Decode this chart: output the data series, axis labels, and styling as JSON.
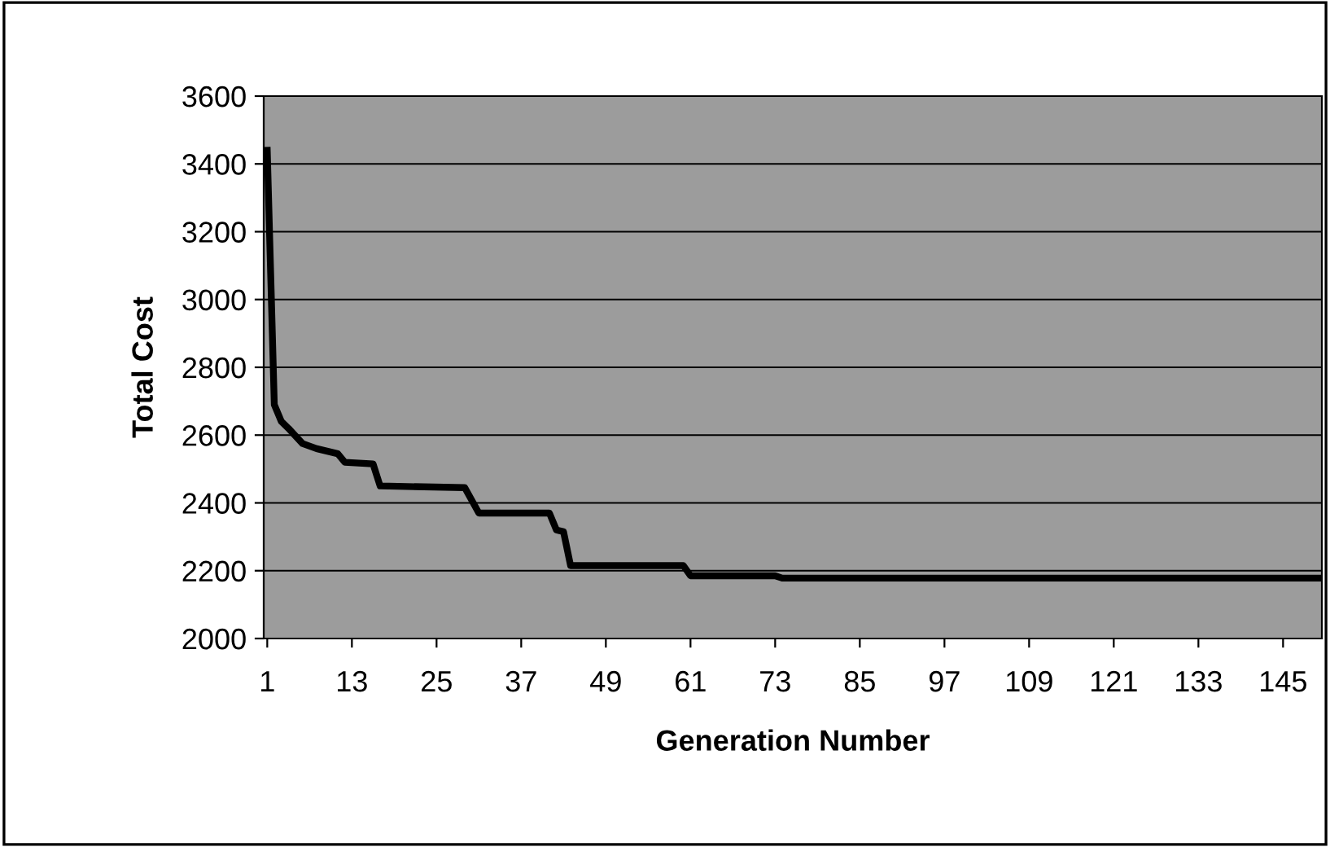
{
  "chart_data": {
    "type": "line",
    "xlabel": "Generation Number",
    "ylabel": "Total Cost",
    "x": [
      1,
      2,
      3,
      4,
      6,
      8,
      11,
      12,
      16,
      17,
      29,
      31,
      41,
      42,
      43,
      44,
      60,
      61,
      73,
      74,
      150
    ],
    "series": [
      {
        "color": "#000000",
        "values": [
          3440,
          2690,
          2640,
          2620,
          2575,
          2560,
          2545,
          2520,
          2515,
          2450,
          2445,
          2370,
          2370,
          2320,
          2315,
          2215,
          2215,
          2185,
          2185,
          2178,
          2178
        ]
      }
    ],
    "xlim": [
      0.5,
      150.5
    ],
    "xticks": [
      1,
      13,
      25,
      37,
      49,
      61,
      73,
      85,
      97,
      109,
      121,
      133,
      145
    ],
    "ylim": [
      2000,
      3600
    ],
    "yticks": [
      2000,
      2200,
      2400,
      2600,
      2800,
      3000,
      3200,
      3400,
      3600
    ],
    "grid": "y",
    "legend": false,
    "marker": "none",
    "line_style": "solid"
  }
}
